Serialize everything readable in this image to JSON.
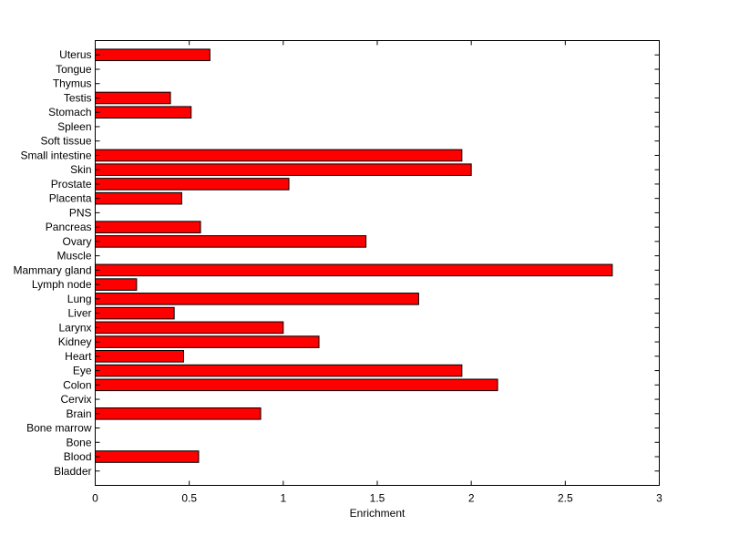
{
  "chart_data": {
    "type": "bar",
    "orientation": "horizontal",
    "title": "",
    "xlabel": "Enrichment",
    "ylabel": "",
    "xlim": [
      0,
      3
    ],
    "x_ticks": [
      "0",
      "0.5",
      "1",
      "1.5",
      "2",
      "2.5",
      "3"
    ],
    "grid": false,
    "bar_color": "#ff0000",
    "categories": [
      "Bladder",
      "Blood",
      "Bone",
      "Bone marrow",
      "Brain",
      "Cervix",
      "Colon",
      "Eye",
      "Heart",
      "Kidney",
      "Larynx",
      "Liver",
      "Lung",
      "Lymph node",
      "Mammary gland",
      "Muscle",
      "Ovary",
      "Pancreas",
      "PNS",
      "Placenta",
      "Prostate",
      "Skin",
      "Small intestine",
      "Soft tissue",
      "Spleen",
      "Stomach",
      "Testis",
      "Thymus",
      "Tongue",
      "Uterus"
    ],
    "values": [
      0,
      0.55,
      0,
      0,
      0.88,
      0,
      2.14,
      1.95,
      0.47,
      1.19,
      1.0,
      0.42,
      1.72,
      0.22,
      2.75,
      0,
      1.44,
      0.56,
      0,
      0.46,
      1.03,
      2.0,
      1.95,
      0,
      0,
      0.51,
      0.4,
      0,
      0,
      0.61
    ]
  }
}
